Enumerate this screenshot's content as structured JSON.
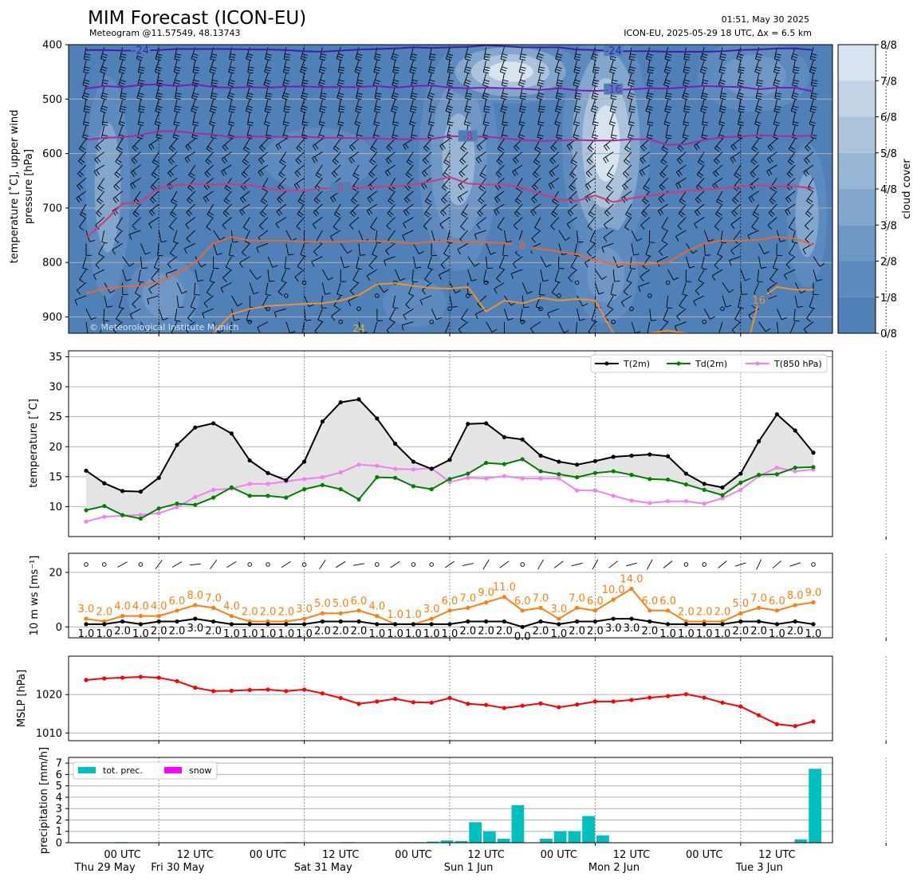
{
  "header": {
    "title": "MIM Forecast (ICON-EU)",
    "subtitle": "Meteogram @11.57549, 48.13743",
    "issued": "01:51, May 30 2025",
    "model_info": "ICON-EU, 2025-05-29 18 UTC, Δx = 6.5 km",
    "copyright": "© Meteorological Institute Munich"
  },
  "time_axis": {
    "tick_hours": [
      12,
      36,
      60,
      84,
      108,
      132,
      156,
      180
    ],
    "tick_labels_line1": [
      "00 UTC",
      "12 UTC",
      "00 UTC",
      "12 UTC",
      "00 UTC",
      "12 UTC",
      "00 UTC",
      "12 UTC",
      "00 UTC",
      "12 UTC"
    ],
    "tick_labels_line2": [
      "Thu 29 May",
      "Fri 30 May",
      "",
      "Sat 31 May",
      "",
      "Sun 1 Jun",
      "",
      "Mon 2 Jun",
      "",
      "Tue 3 Jun"
    ],
    "label_hours": [
      6,
      18,
      30,
      42,
      54,
      66,
      78,
      90,
      102,
      114
    ],
    "step_hours": 3,
    "n_steps": 41
  },
  "chart_data": [
    {
      "id": "upper_air",
      "type": "heatmap",
      "ylabel": "temperature [°C], upper wind\npressure [hPa]",
      "ylim": [
        930,
        400
      ],
      "yticks": [
        400,
        500,
        600,
        700,
        800,
        900
      ],
      "colorbar": {
        "label": "cloud cover",
        "levels": [
          "0/8",
          "1/8",
          "2/8",
          "3/8",
          "4/8",
          "5/8",
          "6/8",
          "7/8",
          "8/8"
        ],
        "colors": [
          "#4f81b8",
          "#5d8bc0",
          "#6f97c6",
          "#83a6cd",
          "#97b5d5",
          "#abc4dc",
          "#c1d3e5",
          "#d7e3ee",
          "#eef3f9"
        ]
      },
      "isotherms": [
        {
          "label": "-24",
          "color": "#3d1fa8",
          "p": [
            410,
            410,
            411,
            411,
            410,
            408,
            408,
            408,
            408,
            409,
            409,
            410,
            412,
            413,
            411,
            409,
            408,
            407,
            405,
            406,
            405,
            404,
            401,
            403,
            405,
            405,
            405,
            409,
            410,
            412,
            412,
            412,
            413,
            413,
            413,
            412,
            410,
            409,
            407,
            407,
            410
          ]
        },
        {
          "label": "-16",
          "color": "#7b1bb8",
          "p": [
            481,
            476,
            478,
            474,
            473,
            476,
            473,
            478,
            479,
            478,
            479,
            477,
            477,
            478,
            478,
            478,
            476,
            479,
            476,
            475,
            479,
            480,
            479,
            480,
            481,
            483,
            480,
            484,
            485,
            483,
            482,
            480,
            481,
            478,
            476,
            477,
            478,
            482,
            479,
            479,
            486
          ]
        },
        {
          "label": "-8",
          "color": "#a82c9e",
          "p": [
            575,
            571,
            570,
            566,
            559,
            559,
            563,
            565,
            570,
            569,
            569,
            570,
            569,
            571,
            571,
            572,
            572,
            574,
            573,
            573,
            568,
            569,
            569,
            572,
            575,
            577,
            576,
            575,
            576,
            576,
            574,
            574,
            584,
            583,
            575,
            570,
            569,
            566,
            568,
            568,
            567
          ]
        },
        {
          "label": "0",
          "color": "#cf3a78",
          "p": [
            755,
            725,
            692,
            689,
            663,
            658,
            656,
            657,
            656,
            658,
            664,
            668,
            668,
            664,
            664,
            662,
            661,
            660,
            657,
            651,
            643,
            655,
            657,
            657,
            663,
            674,
            684,
            687,
            677,
            689,
            682,
            677,
            672,
            669,
            666,
            664,
            660,
            658,
            660,
            660,
            664
          ]
        },
        {
          "label": "8",
          "color": "#e8692e",
          "p": [
            857,
            848,
            844,
            843,
            836,
            820,
            800,
            765,
            753,
            760,
            760,
            760,
            762,
            762,
            762,
            760,
            761,
            762,
            765,
            762,
            760,
            763,
            763,
            765,
            770,
            775,
            780,
            785,
            796,
            802,
            803,
            803,
            800,
            780,
            765,
            760,
            760,
            758,
            753,
            756,
            768
          ]
        },
        {
          "label": "16",
          "color": "#f0902c",
          "p": [
            1000,
            999,
            999,
            999,
            999,
            999,
            999,
            930,
            895,
            885,
            880,
            878,
            876,
            875,
            870,
            860,
            840,
            838,
            843,
            847,
            848,
            845,
            890,
            870,
            875,
            865,
            870,
            867,
            870,
            930,
            945,
            930,
            925,
            930,
            935,
            1000,
            1000,
            870,
            845,
            850,
            850
          ]
        },
        {
          "label": "24",
          "color": "#e0c028",
          "p": []
        }
      ]
    },
    {
      "id": "surface_temperature",
      "type": "line",
      "ylabel": "temperature [°C]",
      "ylim": [
        5,
        36
      ],
      "yticks": [
        10,
        15,
        20,
        25,
        30,
        35
      ],
      "series": [
        {
          "name": "T(2m)",
          "color": "#000000",
          "values": [
            16.0,
            13.9,
            12.6,
            12.5,
            14.8,
            20.3,
            23.2,
            23.9,
            22.2,
            17.7,
            15.6,
            14.4,
            17.5,
            24.2,
            27.4,
            27.9,
            24.7,
            20.5,
            17.5,
            16.3,
            17.8,
            23.8,
            23.9,
            21.6,
            21.2,
            18.5,
            17.5,
            17.0,
            17.6,
            18.3,
            18.5,
            18.7,
            18.4,
            15.5,
            13.8,
            13.2,
            15.5,
            20.9,
            25.4,
            22.7,
            19.0
          ]
        },
        {
          "name": "Td(2m)",
          "color": "#008000",
          "values": [
            9.4,
            10.1,
            8.6,
            8.0,
            9.7,
            10.5,
            10.3,
            11.5,
            13.2,
            11.8,
            11.8,
            11.5,
            12.9,
            13.6,
            12.9,
            11.2,
            14.9,
            14.8,
            13.4,
            12.9,
            14.6,
            15.5,
            17.3,
            17.1,
            17.9,
            15.9,
            15.4,
            14.9,
            15.6,
            15.9,
            15.3,
            14.6,
            14.5,
            13.7,
            12.8,
            11.9,
            14.0,
            15.3,
            15.4,
            16.5,
            16.6
          ]
        },
        {
          "name": "T(850 hPa)",
          "color": "#ee82ee",
          "values": [
            7.5,
            8.3,
            8.5,
            8.6,
            8.9,
            9.9,
            11.6,
            12.8,
            13.0,
            13.8,
            13.8,
            14.2,
            14.6,
            14.9,
            15.7,
            17.0,
            16.8,
            16.3,
            16.2,
            16.4,
            14.1,
            14.8,
            14.7,
            15.1,
            14.7,
            14.7,
            14.7,
            12.7,
            12.7,
            11.8,
            11.0,
            10.6,
            10.9,
            10.9,
            10.5,
            11.4,
            12.8,
            15.1,
            16.5,
            15.9,
            16.2
          ]
        }
      ]
    },
    {
      "id": "surface_wind",
      "type": "line",
      "ylabel": "10 m ws [ms⁻¹]",
      "ylim": [
        -4,
        27
      ],
      "yticks": [
        0,
        20
      ],
      "series": [
        {
          "name": "wind speed",
          "color": "#000000",
          "values": [
            1.0,
            1.0,
            2.0,
            1.0,
            2.0,
            2.0,
            3.0,
            2.0,
            1.0,
            1.0,
            1.0,
            1.0,
            1.0,
            2.0,
            2.0,
            2.0,
            1.0,
            1.0,
            1.0,
            1.0,
            1.0,
            2.0,
            2.0,
            2.0,
            0.0,
            2.0,
            1.0,
            2.0,
            2.0,
            3.0,
            3.0,
            2.0,
            1.0,
            1.0,
            1.0,
            1.0,
            2.0,
            2.0,
            1.0,
            2.0,
            1.0
          ]
        },
        {
          "name": "gusts",
          "color": "#ff7f0e",
          "values": [
            3.0,
            2.0,
            4.0,
            4.0,
            4.0,
            6.0,
            8.0,
            7.0,
            4.0,
            2.0,
            2.0,
            2.0,
            3.0,
            5.0,
            5.0,
            6.0,
            4.0,
            1.0,
            1.0,
            3.0,
            6.0,
            7.0,
            9.0,
            11.0,
            6.0,
            7.0,
            3.0,
            7.0,
            6.0,
            10.0,
            14.0,
            6.0,
            6.0,
            2.0,
            2.0,
            2.0,
            5.0,
            7.0,
            6.0,
            8.0,
            9.0
          ]
        }
      ],
      "speed_labels": [
        "1.0",
        "1.0",
        "2.0",
        "1.0",
        "2.0",
        "2.0",
        "3.0",
        "2.0",
        "1.0",
        "1.0",
        "1.0",
        "1.0",
        "1.0",
        "2.0",
        "2.0",
        "2.0",
        "1.0",
        "1.0",
        "1.0",
        "1.0",
        "1.0",
        "2.0",
        "2.0",
        "2.0",
        "0.0",
        "2.0",
        "1.0",
        "2.0",
        "2.0",
        "3.0",
        "3.0",
        "2.0",
        "1.0",
        "1.0",
        "1.0",
        "1.0",
        "2.0",
        "2.0",
        "1.0",
        "2.0",
        "1.0"
      ],
      "gust_labels": [
        "3.0",
        "2.0",
        "4.0",
        "4.0",
        "4.0",
        "6.0",
        "8.0",
        "7.0",
        "4.0",
        "2.0",
        "2.0",
        "2.0",
        "3.0",
        "5.0",
        "5.0",
        "6.0",
        "4.0",
        "1.0",
        "1.0",
        "3.0",
        "6.0",
        "7.0",
        "9.0",
        "11.0",
        "6.0",
        "7.0",
        "3.0",
        "7.0",
        "6.0",
        "10.0",
        "14.0",
        "6.0",
        "6.0",
        "2.0",
        "2.0",
        "2.0",
        "5.0",
        "7.0",
        "6.0",
        "8.0",
        "9.0"
      ]
    },
    {
      "id": "mslp",
      "type": "line",
      "ylabel": "MSLP [hPa]",
      "ylim": [
        1008,
        1030
      ],
      "yticks": [
        1010,
        1020
      ],
      "series": [
        {
          "name": "MSLP",
          "color": "#ff0000",
          "values": [
            1023.8,
            1024.2,
            1024.4,
            1024.6,
            1024.4,
            1023.5,
            1021.8,
            1020.9,
            1021.0,
            1021.2,
            1021.3,
            1020.9,
            1021.3,
            1020.3,
            1019.1,
            1017.6,
            1018.2,
            1018.9,
            1018.0,
            1017.9,
            1019.1,
            1017.6,
            1017.3,
            1016.5,
            1017.1,
            1017.7,
            1016.7,
            1017.4,
            1018.2,
            1018.2,
            1018.6,
            1019.2,
            1019.6,
            1020.1,
            1019.2,
            1017.9,
            1016.9,
            1014.6,
            1012.3,
            1011.8,
            1013.0
          ]
        }
      ]
    },
    {
      "id": "precipitation",
      "type": "bar",
      "ylabel": "precipitation [mm/h]",
      "ylim": [
        0,
        7.5
      ],
      "yticks": [
        0,
        1,
        2,
        3,
        4,
        5,
        6,
        7
      ],
      "series": [
        {
          "name": "tot. prec.",
          "color": "#00bfbf",
          "values": [
            0,
            0,
            0.05,
            0,
            0,
            0,
            0,
            0,
            0,
            0,
            0,
            0,
            0,
            0,
            0.05,
            0,
            0,
            0,
            0.05,
            0,
            0,
            0,
            0.05,
            0.05,
            0.1,
            0.2,
            0.15,
            1.8,
            1.0,
            0.35,
            3.3,
            0,
            0.35,
            1.0,
            1.0,
            2.35,
            0.65,
            0,
            0,
            0,
            0,
            0,
            0,
            0,
            0,
            0,
            0,
            0,
            0,
            0,
            0.3,
            6.5
          ]
        },
        {
          "name": "snow",
          "color": "#ff00ff",
          "values": []
        }
      ]
    }
  ]
}
